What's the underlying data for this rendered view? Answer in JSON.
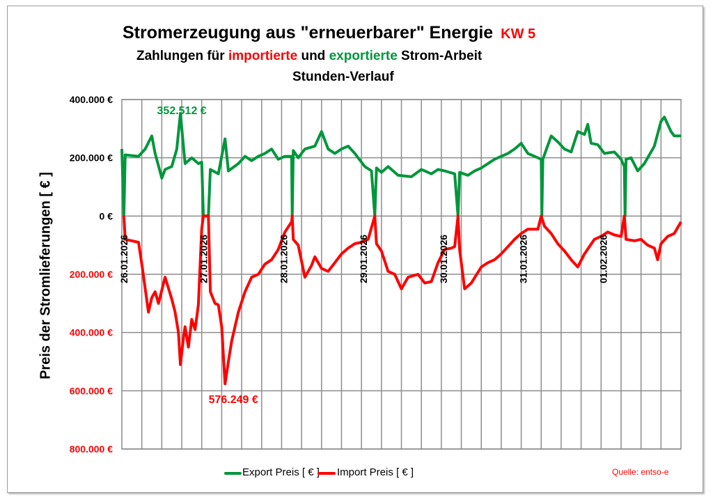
{
  "chart_data": {
    "type": "line",
    "title": "Stromerzeugung aus \"erneuerbarer\" Energie",
    "title_tag": "KW 5",
    "subtitle_parts": [
      "Zahlungen für ",
      "importierte",
      " und ",
      "exportierte",
      " Strom-Arbeit"
    ],
    "subtitle2": "Stunden-Verlauf",
    "ylabel": "Preis der Stromlieferungen [ € ]",
    "ylim": [
      -800000,
      400000
    ],
    "xlim_hours": [
      0,
      168
    ],
    "grid": true,
    "colors": {
      "export": "#00963c",
      "import": "#ff0000",
      "text": "#000000"
    },
    "yticks": [
      {
        "value": 400000,
        "label": "400.000 €",
        "color": "#000000"
      },
      {
        "value": 200000,
        "label": "200.000 €",
        "color": "#000000"
      },
      {
        "value": 0,
        "label": "0 €",
        "color": "#000000"
      },
      {
        "value": -200000,
        "label": "200.000 €",
        "color": "#ff0000"
      },
      {
        "value": -400000,
        "label": "400.000 €",
        "color": "#ff0000"
      },
      {
        "value": -600000,
        "label": "600.000 €",
        "color": "#ff0000"
      },
      {
        "value": -800000,
        "label": "800.000 €",
        "color": "#ff0000"
      }
    ],
    "xticks": [
      {
        "hour": 0,
        "label": "26.01.2026"
      },
      {
        "hour": 24,
        "label": "27.01.2026"
      },
      {
        "hour": 48,
        "label": "28.01.2026"
      },
      {
        "hour": 72,
        "label": "29.01.2026"
      },
      {
        "hour": 96,
        "label": "30.01.2026"
      },
      {
        "hour": 120,
        "label": "31.01.2026"
      },
      {
        "hour": 144,
        "label": "01.02.2026"
      }
    ],
    "annotations": [
      {
        "series": "export",
        "hour": 17.6,
        "value": 352512,
        "label": "352.512 €"
      },
      {
        "series": "import",
        "hour": 31,
        "value": 576249,
        "label": "576.249 €"
      }
    ],
    "series": [
      {
        "name": "Export Preis [ € ]",
        "key": "export",
        "unit": "k€",
        "points": [
          [
            0,
            230
          ],
          [
            0.6,
            0
          ],
          [
            1,
            210
          ],
          [
            5,
            205
          ],
          [
            7,
            230
          ],
          [
            9,
            275
          ],
          [
            10,
            215
          ],
          [
            12,
            130
          ],
          [
            13,
            160
          ],
          [
            15,
            170
          ],
          [
            16.5,
            230
          ],
          [
            17.6,
            352
          ],
          [
            19,
            180
          ],
          [
            21,
            200
          ],
          [
            23,
            180
          ],
          [
            24,
            185
          ],
          [
            24.5,
            0
          ],
          [
            26,
            0
          ],
          [
            26.6,
            160
          ],
          [
            29,
            145
          ],
          [
            31,
            265
          ],
          [
            32,
            155
          ],
          [
            35,
            180
          ],
          [
            37,
            205
          ],
          [
            39,
            190
          ],
          [
            41,
            205
          ],
          [
            43,
            215
          ],
          [
            45,
            230
          ],
          [
            47,
            195
          ],
          [
            49,
            205
          ],
          [
            51,
            205
          ],
          [
            51.2,
            0
          ],
          [
            51.5,
            225
          ],
          [
            53,
            200
          ],
          [
            55,
            230
          ],
          [
            58,
            240
          ],
          [
            60,
            290
          ],
          [
            62,
            230
          ],
          [
            64,
            215
          ],
          [
            66,
            230
          ],
          [
            68,
            240
          ],
          [
            70,
            215
          ],
          [
            73,
            170
          ],
          [
            75,
            155
          ],
          [
            76,
            0
          ],
          [
            76.5,
            165
          ],
          [
            78,
            150
          ],
          [
            80,
            170
          ],
          [
            83,
            140
          ],
          [
            87,
            135
          ],
          [
            90,
            160
          ],
          [
            93,
            145
          ],
          [
            95,
            160
          ],
          [
            97,
            155
          ],
          [
            100,
            145
          ],
          [
            101,
            0
          ],
          [
            101.5,
            150
          ],
          [
            104,
            140
          ],
          [
            106,
            155
          ],
          [
            108,
            165
          ],
          [
            110,
            180
          ],
          [
            112,
            195
          ],
          [
            114,
            205
          ],
          [
            116,
            215
          ],
          [
            118,
            230
          ],
          [
            120,
            250
          ],
          [
            122,
            215
          ],
          [
            124,
            205
          ],
          [
            126,
            195
          ],
          [
            126.2,
            0
          ],
          [
            126.5,
            195
          ],
          [
            129,
            275
          ],
          [
            131,
            255
          ],
          [
            133,
            230
          ],
          [
            135,
            220
          ],
          [
            137,
            290
          ],
          [
            139,
            280
          ],
          [
            140,
            315
          ],
          [
            141,
            250
          ],
          [
            143,
            245
          ],
          [
            145,
            215
          ],
          [
            148,
            220
          ],
          [
            150,
            195
          ],
          [
            151,
            170
          ],
          [
            151.2,
            0
          ],
          [
            151.5,
            195
          ],
          [
            153,
            200
          ],
          [
            155,
            155
          ],
          [
            157,
            180
          ],
          [
            160,
            240
          ],
          [
            162,
            325
          ],
          [
            163,
            340
          ],
          [
            165,
            290
          ],
          [
            166,
            275
          ],
          [
            168,
            275
          ]
        ]
      },
      {
        "name": "Import Preis [ € ]",
        "key": "import",
        "unit": "k€",
        "points": [
          [
            0.6,
            0
          ],
          [
            1,
            80
          ],
          [
            3,
            85
          ],
          [
            5,
            90
          ],
          [
            6,
            165
          ],
          [
            8,
            330
          ],
          [
            9,
            280
          ],
          [
            10,
            260
          ],
          [
            11,
            300
          ],
          [
            13,
            210
          ],
          [
            15,
            285
          ],
          [
            16,
            330
          ],
          [
            17,
            400
          ],
          [
            17.6,
            510
          ],
          [
            18.5,
            420
          ],
          [
            19,
            380
          ],
          [
            20,
            450
          ],
          [
            21,
            355
          ],
          [
            22,
            390
          ],
          [
            23,
            305
          ],
          [
            24,
            45
          ],
          [
            24.5,
            0
          ],
          [
            26,
            0
          ],
          [
            26.6,
            260
          ],
          [
            28,
            300
          ],
          [
            29,
            305
          ],
          [
            30,
            380
          ],
          [
            31,
            576
          ],
          [
            32,
            500
          ],
          [
            33,
            430
          ],
          [
            34,
            380
          ],
          [
            35,
            330
          ],
          [
            37,
            260
          ],
          [
            39,
            210
          ],
          [
            41,
            200
          ],
          [
            43,
            165
          ],
          [
            45,
            150
          ],
          [
            47,
            115
          ],
          [
            49,
            55
          ],
          [
            51,
            20
          ],
          [
            51.2,
            0
          ],
          [
            51.5,
            80
          ],
          [
            53,
            100
          ],
          [
            55,
            210
          ],
          [
            57,
            170
          ],
          [
            58,
            140
          ],
          [
            60,
            180
          ],
          [
            62,
            190
          ],
          [
            64,
            160
          ],
          [
            66,
            130
          ],
          [
            68,
            110
          ],
          [
            70,
            95
          ],
          [
            72,
            90
          ],
          [
            74,
            80
          ],
          [
            76,
            0
          ],
          [
            76.5,
            95
          ],
          [
            78,
            120
          ],
          [
            80,
            190
          ],
          [
            82,
            200
          ],
          [
            84,
            250
          ],
          [
            86,
            210
          ],
          [
            89,
            200
          ],
          [
            91,
            230
          ],
          [
            93,
            225
          ],
          [
            95,
            160
          ],
          [
            97,
            115
          ],
          [
            99,
            110
          ],
          [
            100,
            105
          ],
          [
            101,
            0
          ],
          [
            101.5,
            115
          ],
          [
            103,
            250
          ],
          [
            105,
            230
          ],
          [
            108,
            175
          ],
          [
            110,
            160
          ],
          [
            112,
            150
          ],
          [
            114,
            130
          ],
          [
            116,
            105
          ],
          [
            118,
            80
          ],
          [
            120,
            60
          ],
          [
            122,
            45
          ],
          [
            125,
            45
          ],
          [
            126,
            0
          ],
          [
            127,
            35
          ],
          [
            129,
            60
          ],
          [
            131,
            95
          ],
          [
            133,
            120
          ],
          [
            135,
            150
          ],
          [
            137,
            175
          ],
          [
            139,
            130
          ],
          [
            142,
            80
          ],
          [
            144,
            70
          ],
          [
            146,
            55
          ],
          [
            148,
            65
          ],
          [
            150,
            70
          ],
          [
            151,
            0
          ],
          [
            151.5,
            80
          ],
          [
            154,
            85
          ],
          [
            156,
            80
          ],
          [
            158,
            100
          ],
          [
            160,
            110
          ],
          [
            161,
            150
          ],
          [
            162,
            95
          ],
          [
            164,
            70
          ],
          [
            166,
            60
          ],
          [
            168,
            20
          ]
        ]
      }
    ],
    "legend": {
      "placement": "bottom-center",
      "entries": [
        "Export Preis [ € ]",
        "Import Preis [ € ]"
      ]
    },
    "source": "Quelle: entso-e"
  }
}
